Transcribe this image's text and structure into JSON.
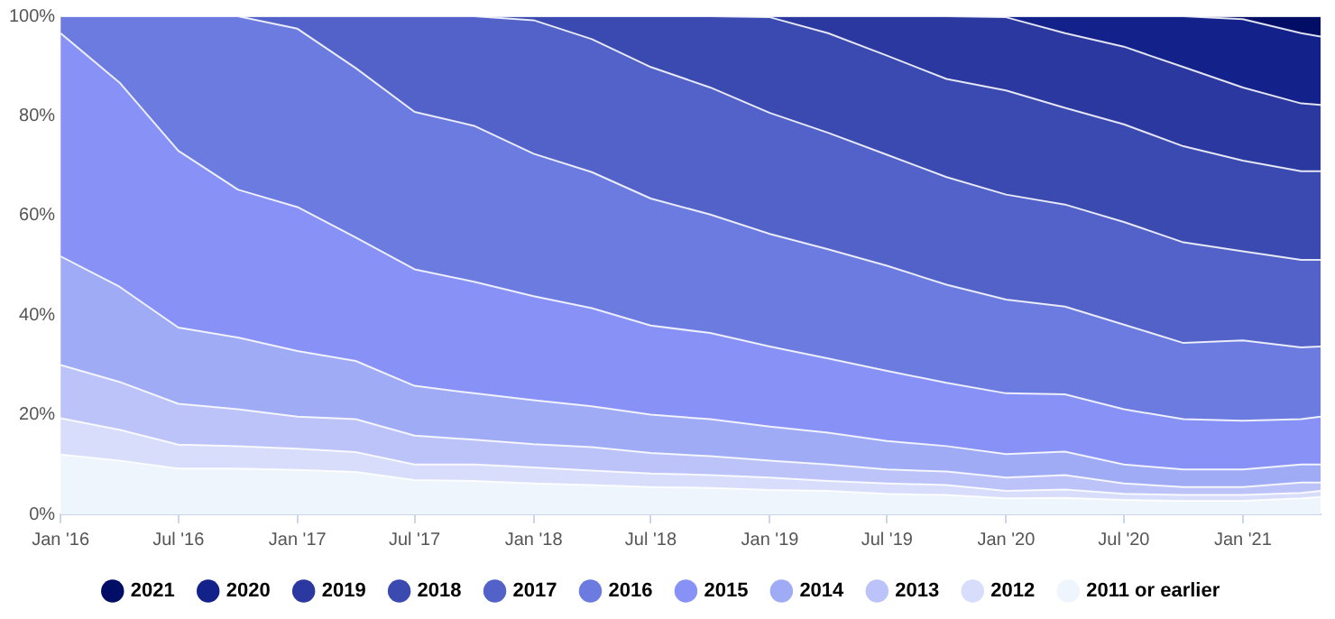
{
  "chart_data": {
    "type": "area",
    "stacked": true,
    "x": [
      "2016-01",
      "2016-04",
      "2016-07",
      "2016-10",
      "2017-01",
      "2017-04",
      "2017-07",
      "2017-10",
      "2018-01",
      "2018-04",
      "2018-07",
      "2018-10",
      "2019-01",
      "2019-04",
      "2019-07",
      "2019-10",
      "2020-01",
      "2020-04",
      "2020-07",
      "2020-10",
      "2021-01",
      "2021-04",
      "2021-05"
    ],
    "series": [
      {
        "name": "2011 or earlier",
        "color": "#eff5fd",
        "values": [
          12,
          10.8,
          9.2,
          9.2,
          8.9,
          8.5,
          6.9,
          6.7,
          6.2,
          5.9,
          5.5,
          5.3,
          4.9,
          4.7,
          4.1,
          3.9,
          3.2,
          3.3,
          2.9,
          2.7,
          2.7,
          3.2,
          3.5
        ]
      },
      {
        "name": "2012",
        "color": "#d7ddfb",
        "values": [
          7.3,
          6.2,
          4.8,
          4.5,
          4.3,
          4,
          3.1,
          3.3,
          3.2,
          2.9,
          2.7,
          2.6,
          2.5,
          2,
          2.1,
          2,
          1.5,
          1.7,
          1.2,
          1.2,
          1.2,
          1.1,
          1.2
        ]
      },
      {
        "name": "2013",
        "color": "#bcc3f9",
        "values": [
          10.7,
          9.6,
          8.2,
          7.4,
          6.4,
          6.6,
          5.8,
          5,
          4.7,
          4.7,
          4.1,
          3.8,
          3.4,
          3.3,
          2.8,
          2.7,
          2.7,
          2.9,
          2.1,
          1.6,
          1.6,
          2.1,
          1.7
        ]
      },
      {
        "name": "2014",
        "color": "#a0abf5",
        "values": [
          21.8,
          19.1,
          15.3,
          14.4,
          13.2,
          11.7,
          10,
          9.3,
          8.8,
          8.2,
          7.7,
          7.4,
          6.8,
          6.4,
          5.7,
          5.1,
          4.7,
          4.7,
          3.8,
          3.5,
          3.5,
          3.6,
          3.6
        ]
      },
      {
        "name": "2015",
        "color": "#8791f6",
        "values": [
          44.8,
          41,
          35.5,
          29.7,
          28.9,
          24.8,
          23.4,
          22.4,
          20.9,
          19.7,
          17.9,
          17.3,
          16.1,
          14.9,
          14.1,
          12.7,
          12.2,
          11.5,
          11.1,
          10.1,
          9.8,
          9.1,
          9.6
        ]
      },
      {
        "name": "2016",
        "color": "#6b7be0",
        "values": [
          3.4,
          13.3,
          27,
          34.8,
          35.8,
          34,
          31.6,
          31.3,
          28.6,
          27.3,
          25.5,
          23.8,
          22.6,
          21.9,
          21.1,
          19.7,
          18.8,
          17.6,
          17,
          15.3,
          16.1,
          14.4,
          14.1
        ]
      },
      {
        "name": "2017",
        "color": "#5262c9",
        "values": [
          0,
          0,
          0,
          0,
          2.5,
          10.4,
          19.2,
          22,
          26.8,
          26.7,
          26.4,
          25.5,
          24.3,
          23.4,
          22.3,
          21.6,
          21.1,
          20.5,
          20.6,
          20.2,
          17.9,
          17.6,
          17.4
        ]
      },
      {
        "name": "2018",
        "color": "#3b4ab0",
        "values": [
          0,
          0,
          0,
          0,
          0,
          0,
          0,
          0,
          0.8,
          4.6,
          10.2,
          14.3,
          19.2,
          20,
          19.9,
          19.7,
          20.9,
          19.4,
          19.6,
          19.3,
          18.2,
          17.8,
          17.8
        ]
      },
      {
        "name": "2019",
        "color": "#2a389f",
        "values": [
          0,
          0,
          0,
          0,
          0,
          0,
          0,
          0,
          0,
          0,
          0,
          0,
          0.2,
          3.4,
          7.9,
          12.6,
          14.7,
          15,
          15.6,
          15.9,
          14.7,
          13.6,
          13.3
        ]
      },
      {
        "name": "2020",
        "color": "#13228a",
        "values": [
          0,
          0,
          0,
          0,
          0,
          0,
          0,
          0,
          0,
          0,
          0,
          0,
          0,
          0,
          0,
          0,
          0.2,
          3.4,
          6.1,
          10.2,
          13.7,
          14.1,
          13.7
        ]
      },
      {
        "name": "2021",
        "color": "#020d66",
        "values": [
          0,
          0,
          0,
          0,
          0,
          0,
          0,
          0,
          0,
          0,
          0,
          0,
          0,
          0,
          0,
          0,
          0,
          0,
          0,
          0,
          0.6,
          3.4,
          4.1
        ]
      }
    ],
    "xlim": [
      "2016-01",
      "2021-05"
    ],
    "xticks": [
      {
        "value": "2016-01",
        "label": "Jan '16"
      },
      {
        "value": "2016-07",
        "label": "Jul '16"
      },
      {
        "value": "2017-01",
        "label": "Jan '17"
      },
      {
        "value": "2017-07",
        "label": "Jul '17"
      },
      {
        "value": "2018-01",
        "label": "Jan '18"
      },
      {
        "value": "2018-07",
        "label": "Jul '18"
      },
      {
        "value": "2019-01",
        "label": "Jan '19"
      },
      {
        "value": "2019-07",
        "label": "Jul '19"
      },
      {
        "value": "2020-01",
        "label": "Jan '20"
      },
      {
        "value": "2020-07",
        "label": "Jul '20"
      },
      {
        "value": "2021-01",
        "label": "Jan '21"
      }
    ],
    "ylim": [
      0,
      100
    ],
    "yticks": [
      {
        "value": 0,
        "label": "0%"
      },
      {
        "value": 20,
        "label": "20%"
      },
      {
        "value": 40,
        "label": "40%"
      },
      {
        "value": 60,
        "label": "60%"
      },
      {
        "value": 80,
        "label": "80%"
      },
      {
        "value": 100,
        "label": "100%"
      }
    ],
    "legend": "bottom",
    "marker": "none",
    "line_style": "solid"
  }
}
